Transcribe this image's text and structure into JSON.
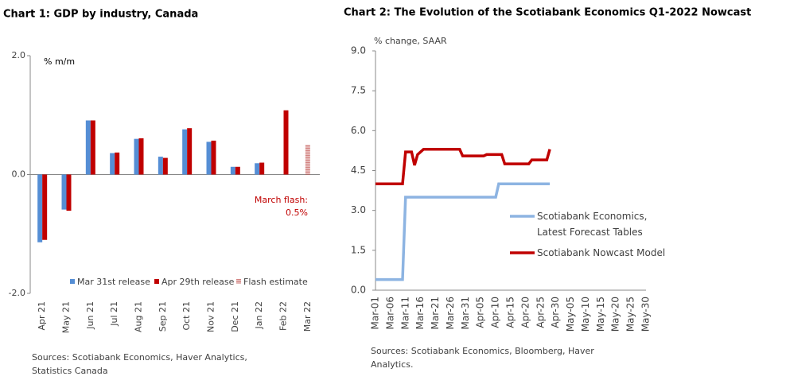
{
  "chart_data": [
    {
      "type": "bar",
      "title": "Chart 1: GDP by industry, Canada",
      "y_label": "% m/m",
      "categories": [
        "Apr 21",
        "May 21",
        "Jun 21",
        "Jul 21",
        "Aug 21",
        "Sep 21",
        "Oct 21",
        "Nov 21",
        "Dec 21",
        "Jan 22",
        "Feb 22",
        "Mar 22"
      ],
      "series": [
        {
          "name": "Mar 31st release",
          "color": "#558ed5",
          "values": [
            -1.14,
            -0.59,
            0.91,
            0.36,
            0.6,
            0.3,
            0.76,
            0.55,
            0.13,
            0.19,
            null,
            null
          ]
        },
        {
          "name": "Apr 29th release",
          "color": "#c00000",
          "values": [
            -1.1,
            -0.61,
            0.91,
            0.37,
            0.61,
            0.28,
            0.78,
            0.57,
            0.13,
            0.2,
            1.08,
            null
          ]
        },
        {
          "name": "Flash estimate",
          "color": "#d99694",
          "values": [
            null,
            null,
            null,
            null,
            null,
            null,
            null,
            null,
            null,
            null,
            null,
            0.5
          ]
        }
      ],
      "ylim": [
        -2,
        2
      ],
      "yticks": [
        {
          "value": -2,
          "label": "-2.0"
        },
        {
          "value": 0,
          "label": "0.0"
        },
        {
          "value": 2,
          "label": "2.0"
        }
      ],
      "annotations": [
        "March flash:",
        "0.5%"
      ],
      "source": "Sources: Scotiabank Economics, Haver Analytics, Statistics Canada"
    },
    {
      "type": "line",
      "title": "Chart 2: The Evolution of the Scotiabank Economics Q1-2022 Nowcast",
      "y_label": "% change, SAAR",
      "categories": [
        "Mar-01",
        null,
        null,
        null,
        null,
        "Mar-06",
        null,
        null,
        null,
        null,
        "Mar-11",
        null,
        null,
        null,
        null,
        "Mar-16",
        null,
        null,
        null,
        null,
        "Mar-21",
        null,
        null,
        null,
        null,
        "Mar-26",
        null,
        null,
        null,
        null,
        "Mar-31",
        null,
        null,
        null,
        null,
        "Apr-05",
        null,
        null,
        null,
        null,
        "Apr-10",
        null,
        null,
        null,
        null,
        "Apr-15",
        null,
        null,
        null,
        null,
        "Apr-20",
        null,
        null,
        null,
        null,
        "Apr-25",
        null,
        null,
        null,
        null,
        "Apr-30",
        null,
        null,
        null,
        null,
        "May-05",
        null,
        null,
        null,
        null,
        "May-10",
        null,
        null,
        null,
        null,
        "May-15",
        null,
        null,
        null,
        null,
        "May-20",
        null,
        null,
        null,
        null,
        "May-25",
        null,
        null,
        null,
        null,
        "May-30"
      ],
      "series": [
        {
          "name": "Scotiabank Economics, Latest Forecast Tables",
          "color": "#8db4e2",
          "values": [
            0.4,
            0.4,
            0.4,
            0.4,
            0.4,
            0.4,
            0.4,
            0.4,
            0.4,
            0.4,
            3.5,
            3.5,
            3.5,
            3.5,
            3.5,
            3.5,
            3.5,
            3.5,
            3.5,
            3.5,
            3.5,
            3.5,
            3.5,
            3.5,
            3.5,
            3.5,
            3.5,
            3.5,
            3.5,
            3.5,
            3.5,
            3.5,
            3.5,
            3.5,
            3.5,
            3.5,
            3.5,
            3.5,
            3.5,
            3.5,
            3.5,
            4.0,
            4.0,
            4.0,
            4.0,
            4.0,
            4.0,
            4.0,
            4.0,
            4.0,
            4.0,
            4.0,
            4.0,
            4.0,
            4.0,
            4.0,
            4.0,
            4.0,
            4.0,
            null,
            null,
            null,
            null,
            null,
            null,
            null,
            null,
            null,
            null,
            null,
            null,
            null,
            null,
            null,
            null,
            null,
            null,
            null,
            null,
            null,
            null,
            null,
            null,
            null,
            null,
            null,
            null,
            null,
            null,
            null,
            null
          ]
        },
        {
          "name": "Scotiabank Nowcast Model",
          "color": "#c00000",
          "values": [
            4.0,
            4.0,
            4.0,
            4.0,
            4.0,
            4.0,
            4.0,
            4.0,
            4.0,
            4.0,
            5.2,
            5.2,
            5.2,
            4.7,
            5.1,
            5.2,
            5.3,
            5.3,
            5.3,
            5.3,
            5.3,
            5.3,
            5.3,
            5.3,
            5.3,
            5.3,
            5.3,
            5.3,
            5.3,
            5.05,
            5.05,
            5.05,
            5.05,
            5.05,
            5.05,
            5.05,
            5.05,
            5.1,
            5.1,
            5.1,
            5.1,
            5.1,
            5.1,
            4.75,
            4.75,
            4.75,
            4.75,
            4.75,
            4.75,
            4.75,
            4.75,
            4.75,
            4.9,
            4.9,
            4.9,
            4.9,
            4.9,
            4.9,
            5.3,
            null,
            null,
            null,
            null,
            null,
            null,
            null,
            null,
            null,
            null,
            null,
            null,
            null,
            null,
            null,
            null,
            null,
            null,
            null,
            null,
            null,
            null,
            null,
            null,
            null,
            null,
            null,
            null,
            null,
            null,
            null,
            null
          ]
        }
      ],
      "ylim": [
        0,
        9
      ],
      "yticks": [
        {
          "value": 0,
          "label": "0.0"
        },
        {
          "value": 1.5,
          "label": "1.5"
        },
        {
          "value": 3,
          "label": "3.0"
        },
        {
          "value": 4.5,
          "label": "4.5"
        },
        {
          "value": 6,
          "label": "6.0"
        },
        {
          "value": 7.5,
          "label": "7.5"
        },
        {
          "value": 9,
          "label": "9.0"
        }
      ],
      "source": "Sources: Scotiabank Economics, Bloomberg, Haver Analytics."
    }
  ]
}
